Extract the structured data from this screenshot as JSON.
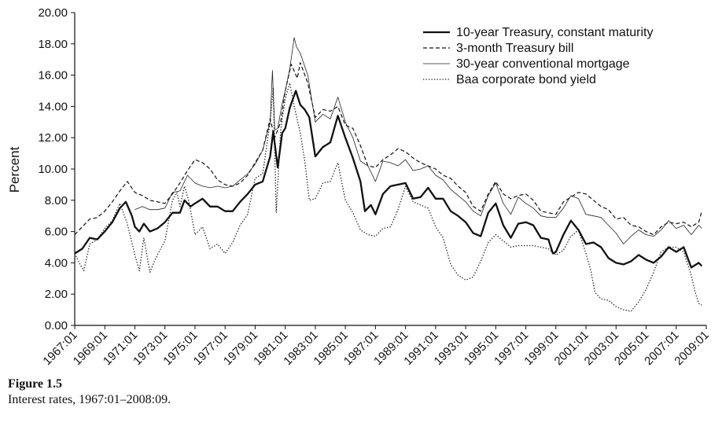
{
  "caption": {
    "number": "Figure 1.5",
    "text": "Interest rates, 1967:01–2008:09."
  },
  "chart_data": {
    "type": "line",
    "title": "",
    "xlabel": "",
    "ylabel": "Percent",
    "ylim": [
      0,
      20
    ],
    "yticks": [
      "0.00",
      "2.00",
      "4.00",
      "6.00",
      "8.00",
      "10.00",
      "12.00",
      "14.00",
      "16.00",
      "18.00",
      "20.00"
    ],
    "xticks": [
      "1967:01",
      "1969:01",
      "1971:01",
      "1973:01",
      "1975:01",
      "1977:01",
      "1979:01",
      "1981:01",
      "1983:01",
      "1985:01",
      "1987:01",
      "1989:01",
      "1991:01",
      "1993:01",
      "1995:01",
      "1997:01",
      "1999:01",
      "2001:01",
      "2003:01",
      "2005:01",
      "2007:01",
      "2009:01"
    ],
    "xlim": [
      1967.0,
      2009.0
    ],
    "grid": false,
    "legend_position": "top-right",
    "series": [
      {
        "name": "10-year Treasury, constant maturity",
        "style": "solid-thick",
        "x": [
          1967.0,
          1967.5,
          1968.0,
          1968.5,
          1969.0,
          1969.5,
          1970.0,
          1970.4,
          1970.8,
          1971.0,
          1971.3,
          1971.6,
          1972.0,
          1972.5,
          1973.0,
          1973.5,
          1974.0,
          1974.3,
          1974.7,
          1975.0,
          1975.5,
          1976.0,
          1976.5,
          1977.0,
          1977.5,
          1978.0,
          1978.5,
          1979.0,
          1979.5,
          1980.0,
          1980.2,
          1980.5,
          1980.8,
          1981.0,
          1981.3,
          1981.7,
          1982.0,
          1982.3,
          1982.6,
          1983.0,
          1983.5,
          1984.0,
          1984.5,
          1985.0,
          1985.5,
          1986.0,
          1986.3,
          1986.7,
          1987.0,
          1987.5,
          1988.0,
          1988.5,
          1989.0,
          1989.5,
          1990.0,
          1990.5,
          1991.0,
          1991.5,
          1992.0,
          1992.5,
          1993.0,
          1993.5,
          1994.0,
          1994.5,
          1995.0,
          1995.5,
          1996.0,
          1996.5,
          1997.0,
          1997.5,
          1998.0,
          1998.5,
          1998.8,
          1999.0,
          1999.5,
          2000.0,
          2000.5,
          2001.0,
          2001.5,
          2002.0,
          2002.5,
          2003.0,
          2003.5,
          2004.0,
          2004.5,
          2005.0,
          2005.5,
          2006.0,
          2006.5,
          2007.0,
          2007.5,
          2008.0,
          2008.5,
          2008.7
        ],
        "values": [
          4.6,
          4.9,
          5.6,
          5.5,
          6.0,
          6.6,
          7.5,
          7.9,
          7.0,
          6.3,
          6.0,
          6.5,
          6.0,
          6.2,
          6.6,
          7.2,
          7.2,
          8.0,
          7.6,
          7.8,
          8.1,
          7.6,
          7.6,
          7.3,
          7.3,
          7.9,
          8.4,
          9.0,
          9.2,
          10.8,
          12.4,
          10.1,
          12.3,
          12.6,
          13.9,
          15.0,
          14.1,
          13.8,
          13.3,
          10.8,
          11.4,
          11.7,
          13.4,
          12.0,
          10.7,
          9.2,
          7.3,
          7.7,
          7.1,
          8.4,
          8.9,
          9.0,
          9.1,
          8.1,
          8.2,
          8.8,
          8.1,
          8.1,
          7.3,
          7.0,
          6.6,
          5.9,
          5.7,
          7.2,
          7.8,
          6.4,
          5.6,
          6.5,
          6.6,
          6.4,
          5.6,
          5.5,
          4.6,
          4.7,
          5.8,
          6.7,
          6.1,
          5.2,
          5.3,
          5.0,
          4.3,
          4.0,
          3.9,
          4.1,
          4.5,
          4.2,
          4.0,
          4.4,
          5.0,
          4.7,
          5.0,
          3.7,
          4.0,
          3.8
        ]
      },
      {
        "name": "3-month Treasury bill",
        "style": "dashed",
        "x": [
          1967.0,
          1967.5,
          1968.0,
          1968.5,
          1969.0,
          1969.5,
          1970.0,
          1970.5,
          1971.0,
          1971.5,
          1972.0,
          1972.5,
          1973.0,
          1973.5,
          1974.0,
          1974.5,
          1975.0,
          1975.5,
          1976.0,
          1976.5,
          1977.0,
          1977.5,
          1978.0,
          1978.5,
          1979.0,
          1979.5,
          1980.0,
          1980.3,
          1980.7,
          1981.0,
          1981.4,
          1981.8,
          1982.0,
          1982.5,
          1983.0,
          1983.5,
          1984.0,
          1984.5,
          1985.0,
          1985.5,
          1986.0,
          1986.5,
          1987.0,
          1987.5,
          1988.0,
          1988.5,
          1989.0,
          1989.5,
          1990.0,
          1990.5,
          1991.0,
          1991.5,
          1992.0,
          1992.5,
          1993.0,
          1993.5,
          1994.0,
          1994.5,
          1995.0,
          1995.5,
          1996.0,
          1996.5,
          1997.0,
          1997.5,
          1998.0,
          1998.5,
          1999.0,
          1999.5,
          2000.0,
          2000.5,
          2001.0,
          2001.5,
          2002.0,
          2002.5,
          2003.0,
          2003.5,
          2004.0,
          2004.5,
          2005.0,
          2005.5,
          2006.0,
          2006.5,
          2007.0,
          2007.5,
          2008.0,
          2008.5,
          2008.7
        ],
        "values": [
          5.8,
          6.3,
          6.8,
          6.9,
          7.3,
          7.9,
          8.6,
          9.2,
          8.5,
          8.3,
          8.0,
          7.9,
          7.8,
          8.4,
          9.1,
          9.9,
          10.6,
          10.4,
          10.0,
          9.3,
          9.0,
          8.9,
          9.1,
          9.6,
          10.4,
          11.2,
          13.2,
          12.0,
          13.0,
          15.0,
          16.7,
          15.8,
          16.8,
          15.5,
          13.3,
          13.8,
          13.7,
          14.0,
          12.8,
          12.6,
          11.5,
          10.2,
          10.1,
          10.6,
          10.9,
          11.3,
          11.1,
          10.7,
          10.4,
          10.2,
          10.0,
          9.6,
          9.4,
          8.9,
          8.5,
          7.6,
          7.3,
          8.4,
          9.2,
          8.4,
          8.1,
          8.3,
          8.4,
          8.0,
          7.3,
          7.2,
          7.1,
          7.9,
          8.2,
          8.5,
          8.4,
          8.0,
          7.6,
          7.4,
          6.8,
          6.9,
          6.4,
          6.3,
          6.0,
          5.8,
          6.3,
          6.6,
          6.5,
          6.6,
          6.3,
          6.6,
          7.3
        ]
      },
      {
        "name": "30-year conventional mortgage",
        "style": "solid-thin",
        "x": [
          1971.0,
          1971.5,
          1972.0,
          1972.5,
          1973.0,
          1973.5,
          1974.0,
          1974.5,
          1975.0,
          1975.5,
          1976.0,
          1976.5,
          1977.0,
          1977.5,
          1978.0,
          1978.5,
          1979.0,
          1979.5,
          1980.0,
          1980.15,
          1980.3,
          1980.5,
          1980.8,
          1981.0,
          1981.3,
          1981.6,
          1981.75,
          1982.0,
          1982.5,
          1983.0,
          1983.5,
          1984.0,
          1984.5,
          1985.0,
          1985.5,
          1986.0,
          1986.5,
          1987.0,
          1987.5,
          1988.0,
          1988.5,
          1989.0,
          1989.5,
          1990.0,
          1990.5,
          1991.0,
          1991.5,
          1992.0,
          1992.5,
          1993.0,
          1993.5,
          1994.0,
          1994.5,
          1995.0,
          1995.5,
          1996.0,
          1996.5,
          1997.0,
          1997.5,
          1998.0,
          1998.5,
          1999.0,
          1999.5,
          2000.0,
          2000.5,
          2001.0,
          2001.5,
          2002.0,
          2002.5,
          2003.0,
          2003.5,
          2004.0,
          2004.5,
          2005.0,
          2005.5,
          2006.0,
          2006.5,
          2007.0,
          2007.5,
          2008.0,
          2008.5,
          2008.7
        ],
        "values": [
          7.4,
          7.6,
          7.4,
          7.4,
          7.5,
          8.5,
          8.6,
          9.6,
          9.1,
          8.9,
          8.8,
          8.9,
          8.8,
          8.9,
          9.3,
          9.7,
          10.3,
          11.2,
          13.0,
          16.3,
          12.5,
          12.6,
          14.2,
          15.0,
          16.4,
          18.4,
          17.8,
          17.4,
          16.0,
          13.0,
          13.5,
          13.2,
          14.6,
          13.0,
          12.0,
          10.5,
          10.2,
          9.2,
          10.5,
          10.4,
          10.2,
          10.6,
          9.9,
          10.0,
          10.2,
          9.6,
          9.3,
          8.7,
          8.3,
          7.9,
          7.3,
          7.0,
          8.3,
          9.1,
          7.8,
          7.1,
          8.2,
          7.8,
          7.5,
          7.0,
          6.9,
          6.9,
          7.5,
          8.3,
          8.1,
          7.1,
          7.0,
          6.9,
          6.4,
          5.9,
          5.2,
          5.7,
          6.1,
          5.8,
          5.7,
          6.1,
          6.7,
          6.2,
          6.4,
          5.8,
          6.4,
          6.2
        ]
      },
      {
        "name": "Baa corporate bond yield",
        "style": "dotted",
        "x": [
          1967.0,
          1967.3,
          1967.6,
          1968.0,
          1968.5,
          1969.0,
          1969.5,
          1970.0,
          1970.5,
          1971.0,
          1971.3,
          1971.6,
          1972.0,
          1972.3,
          1972.6,
          1973.0,
          1973.5,
          1973.8,
          1974.0,
          1974.3,
          1974.6,
          1975.0,
          1975.5,
          1976.0,
          1976.5,
          1977.0,
          1977.5,
          1978.0,
          1978.5,
          1979.0,
          1979.5,
          1980.0,
          1980.2,
          1980.4,
          1980.7,
          1981.0,
          1981.3,
          1981.6,
          1982.0,
          1982.3,
          1982.6,
          1983.0,
          1983.5,
          1984.0,
          1984.5,
          1985.0,
          1985.5,
          1986.0,
          1986.5,
          1987.0,
          1987.5,
          1988.0,
          1988.5,
          1989.0,
          1989.5,
          1990.0,
          1990.5,
          1991.0,
          1991.5,
          1992.0,
          1992.5,
          1993.0,
          1993.5,
          1994.0,
          1994.5,
          1995.0,
          1995.5,
          1996.0,
          1996.5,
          1997.0,
          1997.5,
          1998.0,
          1998.5,
          1999.0,
          1999.5,
          2000.0,
          2000.5,
          2001.0,
          2001.3,
          2001.6,
          2002.0,
          2002.5,
          2003.0,
          2003.5,
          2004.0,
          2004.5,
          2005.0,
          2005.5,
          2006.0,
          2006.5,
          2007.0,
          2007.5,
          2008.0,
          2008.3,
          2008.5,
          2008.7
        ],
        "values": [
          4.6,
          4.0,
          3.5,
          5.2,
          5.5,
          6.2,
          6.7,
          7.8,
          6.5,
          4.5,
          3.5,
          5.6,
          3.4,
          4.1,
          4.7,
          5.4,
          8.0,
          8.5,
          7.6,
          8.9,
          7.9,
          5.8,
          6.3,
          4.9,
          5.2,
          4.6,
          5.3,
          6.4,
          7.1,
          9.4,
          9.7,
          13.0,
          15.2,
          7.2,
          12.5,
          14.5,
          15.5,
          14.0,
          12.3,
          10.5,
          8.0,
          8.1,
          9.1,
          9.2,
          10.4,
          8.0,
          7.2,
          6.1,
          5.8,
          5.7,
          6.2,
          6.3,
          7.4,
          8.9,
          7.9,
          7.7,
          7.5,
          6.3,
          5.6,
          3.9,
          3.2,
          2.9,
          3.1,
          4.1,
          5.3,
          5.8,
          5.4,
          5.0,
          5.1,
          5.1,
          5.1,
          5.0,
          4.9,
          4.5,
          4.8,
          5.7,
          6.1,
          4.6,
          3.6,
          2.1,
          1.7,
          1.6,
          1.2,
          1.0,
          0.9,
          1.5,
          2.3,
          3.4,
          4.7,
          5.0,
          5.0,
          4.7,
          3.2,
          2.0,
          1.4,
          1.3
        ]
      }
    ]
  }
}
